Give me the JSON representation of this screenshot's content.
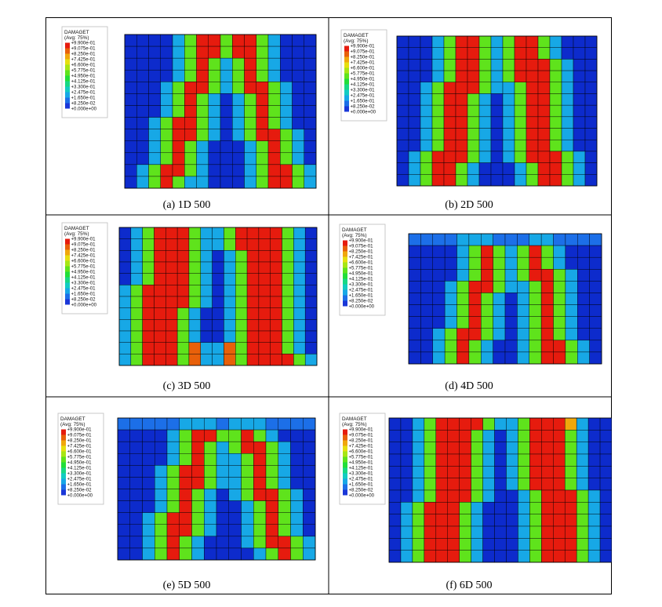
{
  "legend": {
    "title": "DAMAGET",
    "subtitle": "(Avg: 75%)",
    "values": [
      "+9.900e-01",
      "+9.075e-01",
      "+8.250e-01",
      "+7.425e-01",
      "+6.600e-01",
      "+5.775e-01",
      "+4.950e-01",
      "+4.125e-01",
      "+3.300e-01",
      "+2.475e-01",
      "+1.650e-01",
      "+8.250e-02",
      "+0.000e+00"
    ],
    "colors": [
      "#e61b0e",
      "#e8600a",
      "#f0a70c",
      "#e6df0f",
      "#a7e614",
      "#5fe31c",
      "#22de39",
      "#17d884",
      "#12ccc2",
      "#17a8e6",
      "#1c6fe8",
      "#1a37d8"
    ],
    "background_color": "#0d2bcc"
  },
  "panels": [
    {
      "caption": "(a) 1D 500"
    },
    {
      "caption": "(b) 2D 500"
    },
    {
      "caption": "(c) 3D 500"
    },
    {
      "caption": "(d) 4D 500"
    },
    {
      "caption": "(e) 5D 500"
    },
    {
      "caption": "(f) 6D 500"
    }
  ]
}
